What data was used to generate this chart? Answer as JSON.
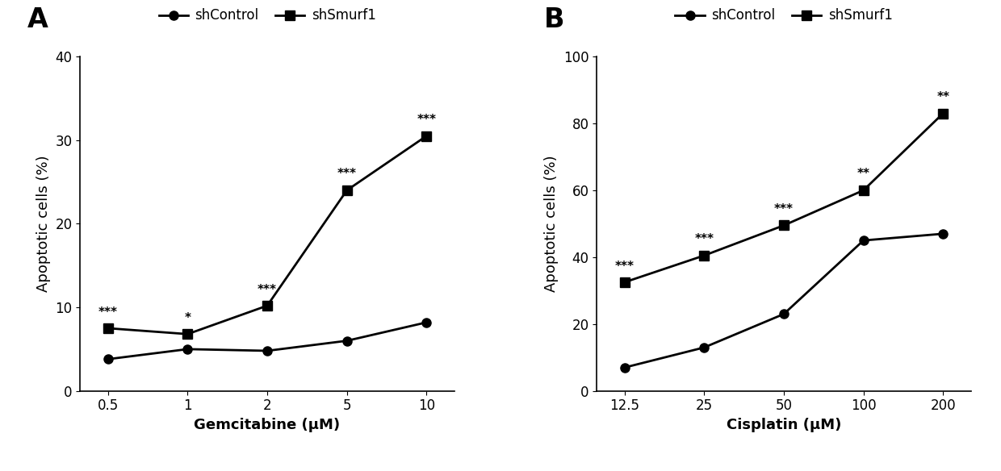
{
  "panel_A": {
    "title": "A",
    "xlabel": "Gemcitabine (μM)",
    "ylabel": "Apoptotic cells (%)",
    "x_positions": [
      0,
      1,
      2,
      3,
      4
    ],
    "x_tick_labels": [
      "0.5",
      "1",
      "2",
      "5",
      "10"
    ],
    "shControl_y": [
      3.8,
      5.0,
      4.8,
      6.0,
      8.2
    ],
    "shSmurf1_y": [
      7.5,
      6.8,
      10.2,
      24.0,
      30.5
    ],
    "ylim": [
      0,
      40
    ],
    "yticks": [
      0,
      10,
      20,
      30,
      40
    ],
    "annotations": [
      {
        "xi": 0,
        "y": 7.5,
        "text": "***"
      },
      {
        "xi": 1,
        "y": 6.8,
        "text": "*"
      },
      {
        "xi": 2,
        "y": 10.2,
        "text": "***"
      },
      {
        "xi": 3,
        "y": 24.0,
        "text": "***"
      },
      {
        "xi": 4,
        "y": 30.5,
        "text": "***"
      }
    ]
  },
  "panel_B": {
    "title": "B",
    "xlabel": "Cisplatin (μM)",
    "ylabel": "Apoptotic cells (%)",
    "x_positions": [
      0,
      1,
      2,
      3,
      4
    ],
    "x_tick_labels": [
      "12.5",
      "25",
      "50",
      "100",
      "200"
    ],
    "shControl_y": [
      7.0,
      13.0,
      23.0,
      45.0,
      47.0
    ],
    "shSmurf1_y": [
      32.5,
      40.5,
      49.5,
      60.0,
      83.0
    ],
    "ylim": [
      0,
      100
    ],
    "yticks": [
      0,
      20,
      40,
      60,
      80,
      100
    ],
    "annotations": [
      {
        "xi": 0,
        "y": 32.5,
        "text": "***"
      },
      {
        "xi": 1,
        "y": 40.5,
        "text": "***"
      },
      {
        "xi": 2,
        "y": 49.5,
        "text": "***"
      },
      {
        "xi": 3,
        "y": 60.0,
        "text": "**"
      },
      {
        "xi": 4,
        "y": 83.0,
        "text": "**"
      }
    ]
  },
  "legend_labels": [
    "shControl",
    "shSmurf1"
  ],
  "line_color": "#000000",
  "marker_circle": "o",
  "marker_square": "s",
  "markersize": 8,
  "linewidth": 2.0,
  "annotation_fontsize": 11,
  "label_fontsize": 13,
  "tick_fontsize": 12,
  "title_fontsize": 24,
  "legend_fontsize": 12,
  "background_color": "#ffffff"
}
